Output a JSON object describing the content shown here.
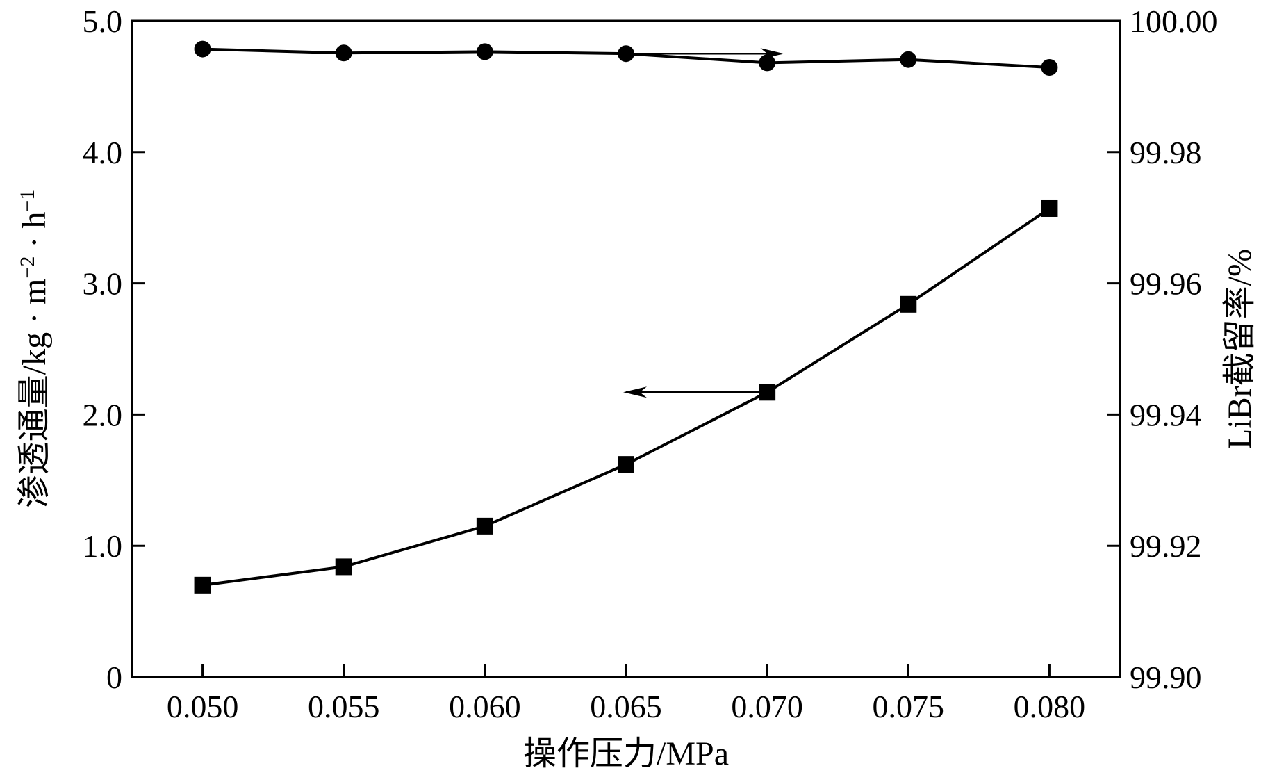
{
  "chart_data": {
    "type": "line",
    "xlabel": "操作压力/MPa",
    "ylabel_left": "渗透通量/kg · m",
    "ylabel_left_sup1": "−2",
    "ylabel_left_mid": " · h",
    "ylabel_left_sup2": "−1",
    "ylabel_right": "LiBr截留率/%",
    "x": [
      0.05,
      0.055,
      0.06,
      0.065,
      0.07,
      0.075,
      0.08
    ],
    "x_tick_labels": [
      "0.050",
      "0.055",
      "0.060",
      "0.065",
      "0.070",
      "0.075",
      "0.080"
    ],
    "xlim": [
      0.0475,
      0.0825
    ],
    "ylim_left": [
      0,
      5.0
    ],
    "y_left_tick_values": [
      0,
      1.0,
      2.0,
      3.0,
      4.0,
      5.0
    ],
    "y_left_tick_labels": [
      "0",
      "1.0",
      "2.0",
      "3.0",
      "4.0",
      "5.0"
    ],
    "ylim_right": [
      99.9,
      100.0
    ],
    "y_right_tick_values": [
      99.9,
      99.92,
      99.94,
      99.96,
      99.98,
      100.0
    ],
    "y_right_tick_labels": [
      "99.90",
      "99.92",
      "99.94",
      "99.96",
      "99.98",
      "100.00"
    ],
    "grid": false,
    "series": [
      {
        "axis": "left",
        "marker": "square",
        "values": [
          0.7,
          0.84,
          1.15,
          1.62,
          2.17,
          2.84,
          3.57
        ]
      },
      {
        "axis": "right",
        "marker": "circle",
        "values": [
          99.9957,
          99.9951,
          99.9953,
          99.995,
          99.9936,
          99.9941,
          99.9929
        ]
      }
    ],
    "annotations": [
      {
        "type": "arrow",
        "direction": "left",
        "series": 0,
        "from_x": 0.07,
        "to_x": 0.065,
        "y": 2.17
      },
      {
        "type": "arrow",
        "direction": "right",
        "series": 1,
        "from_x": 0.065,
        "to_x": 0.0705,
        "y": 99.995
      }
    ]
  }
}
